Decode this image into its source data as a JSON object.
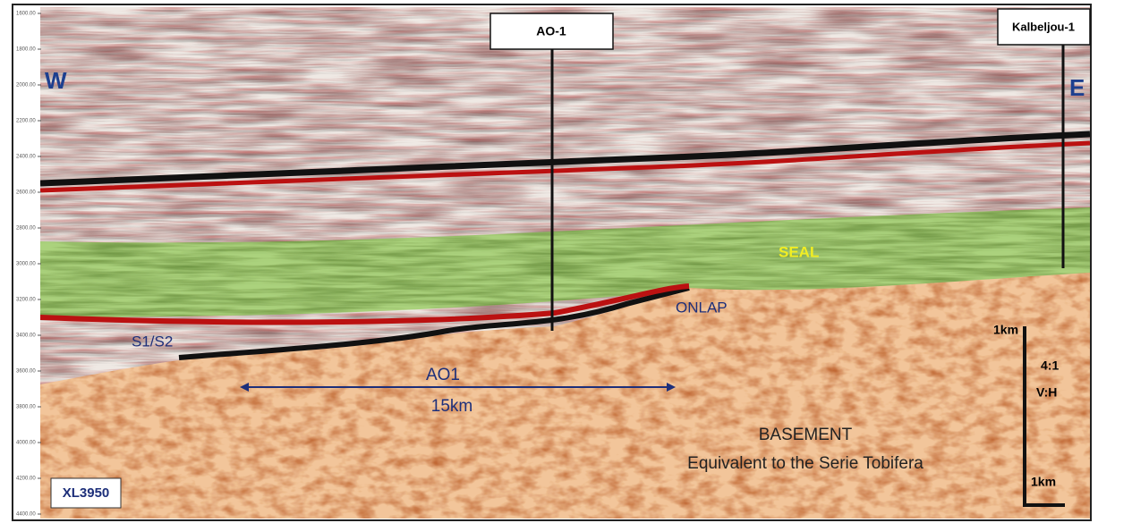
{
  "axis": {
    "labels": [
      "1600.00",
      "1800.00",
      "2000.00",
      "2200.00",
      "2400.00",
      "2600.00",
      "2800.00",
      "3000.00",
      "3200.00",
      "3400.00",
      "3600.00",
      "3800.00",
      "4000.00",
      "4200.00",
      "4400.00"
    ]
  },
  "directions": {
    "west": "W",
    "east": "E"
  },
  "wells": {
    "well1": "AO-1",
    "well2": "Kalbeljou-1"
  },
  "annotations": {
    "seal": "SEAL",
    "onlap": "ONLAP",
    "sequence": "S1/S2",
    "field": "AO1",
    "distance": "15km",
    "basement": "BASEMENT",
    "basement_note": "Equivalent to the Serie Tobifera",
    "line_id": "XL3950"
  },
  "scale": {
    "top": "1km",
    "ratio": "4:1",
    "ratio_axes": "V:H",
    "bottom": "1km"
  }
}
